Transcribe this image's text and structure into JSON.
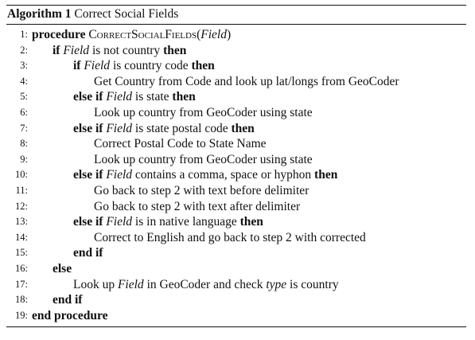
{
  "algorithm": {
    "label": "Algorithm 1",
    "title": "Correct Social Fields"
  },
  "lines": [
    {
      "num": "1:",
      "indent": 0,
      "parts": [
        {
          "t": "procedure",
          "s": "kw"
        },
        {
          "t": " ",
          "s": ""
        },
        {
          "t": "CorrectSocialFields",
          "s": "sc"
        },
        {
          "t": "(",
          "s": ""
        },
        {
          "t": "Field",
          "s": "it"
        },
        {
          "t": ")",
          "s": ""
        }
      ]
    },
    {
      "num": "2:",
      "indent": 1,
      "parts": [
        {
          "t": "if",
          "s": "kw"
        },
        {
          "t": " ",
          "s": ""
        },
        {
          "t": "Field",
          "s": "it"
        },
        {
          "t": " is not country ",
          "s": ""
        },
        {
          "t": "then",
          "s": "kw"
        }
      ]
    },
    {
      "num": "3:",
      "indent": 2,
      "parts": [
        {
          "t": "if",
          "s": "kw"
        },
        {
          "t": " ",
          "s": ""
        },
        {
          "t": "Field",
          "s": "it"
        },
        {
          "t": " is country code ",
          "s": ""
        },
        {
          "t": "then",
          "s": "kw"
        }
      ]
    },
    {
      "num": "4:",
      "indent": 3,
      "parts": [
        {
          "t": "Get Country from Code and look up lat/longs from GeoCoder",
          "s": ""
        }
      ]
    },
    {
      "num": "5:",
      "indent": 2,
      "parts": [
        {
          "t": "else if",
          "s": "kw"
        },
        {
          "t": " ",
          "s": ""
        },
        {
          "t": "Field",
          "s": "it"
        },
        {
          "t": " is state ",
          "s": ""
        },
        {
          "t": "then",
          "s": "kw"
        }
      ]
    },
    {
      "num": "6:",
      "indent": 3,
      "parts": [
        {
          "t": "Look up country from GeoCoder using state",
          "s": ""
        }
      ]
    },
    {
      "num": "7:",
      "indent": 2,
      "parts": [
        {
          "t": "else if",
          "s": "kw"
        },
        {
          "t": " ",
          "s": ""
        },
        {
          "t": "Field",
          "s": "it"
        },
        {
          "t": " is state postal code ",
          "s": ""
        },
        {
          "t": "then",
          "s": "kw"
        }
      ]
    },
    {
      "num": "8:",
      "indent": 3,
      "parts": [
        {
          "t": "Correct Postal Code to State Name",
          "s": ""
        }
      ]
    },
    {
      "num": "9:",
      "indent": 3,
      "parts": [
        {
          "t": "Look up country from GeoCoder using state",
          "s": ""
        }
      ]
    },
    {
      "num": "10:",
      "indent": 2,
      "parts": [
        {
          "t": "else if",
          "s": "kw"
        },
        {
          "t": " ",
          "s": ""
        },
        {
          "t": "Field",
          "s": "it"
        },
        {
          "t": " contains a comma, space or hyphon ",
          "s": ""
        },
        {
          "t": "then",
          "s": "kw"
        }
      ]
    },
    {
      "num": "11:",
      "indent": 3,
      "parts": [
        {
          "t": "Go back to step 2 with text before delimiter",
          "s": ""
        }
      ]
    },
    {
      "num": "12:",
      "indent": 3,
      "parts": [
        {
          "t": "Go back to step 2 with text after delimiter",
          "s": ""
        }
      ]
    },
    {
      "num": "13:",
      "indent": 2,
      "parts": [
        {
          "t": "else if",
          "s": "kw"
        },
        {
          "t": " ",
          "s": ""
        },
        {
          "t": "Field",
          "s": "it"
        },
        {
          "t": " is in native language ",
          "s": ""
        },
        {
          "t": "then",
          "s": "kw"
        }
      ]
    },
    {
      "num": "14:",
      "indent": 3,
      "parts": [
        {
          "t": "Correct to English and go back to step 2 with corrected",
          "s": ""
        }
      ]
    },
    {
      "num": "15:",
      "indent": 2,
      "parts": [
        {
          "t": "end if",
          "s": "kw"
        }
      ]
    },
    {
      "num": "16:",
      "indent": 1,
      "parts": [
        {
          "t": "else",
          "s": "kw"
        }
      ]
    },
    {
      "num": "17:",
      "indent": 2,
      "parts": [
        {
          "t": "Look up ",
          "s": ""
        },
        {
          "t": "Field",
          "s": "it"
        },
        {
          "t": " in GeoCoder and check ",
          "s": ""
        },
        {
          "t": "type",
          "s": "it"
        },
        {
          "t": " is country",
          "s": ""
        }
      ]
    },
    {
      "num": "18:",
      "indent": 1,
      "parts": [
        {
          "t": "end if",
          "s": "kw"
        }
      ]
    },
    {
      "num": "19:",
      "indent": 0,
      "parts": [
        {
          "t": "end procedure",
          "s": "kw"
        }
      ]
    }
  ]
}
